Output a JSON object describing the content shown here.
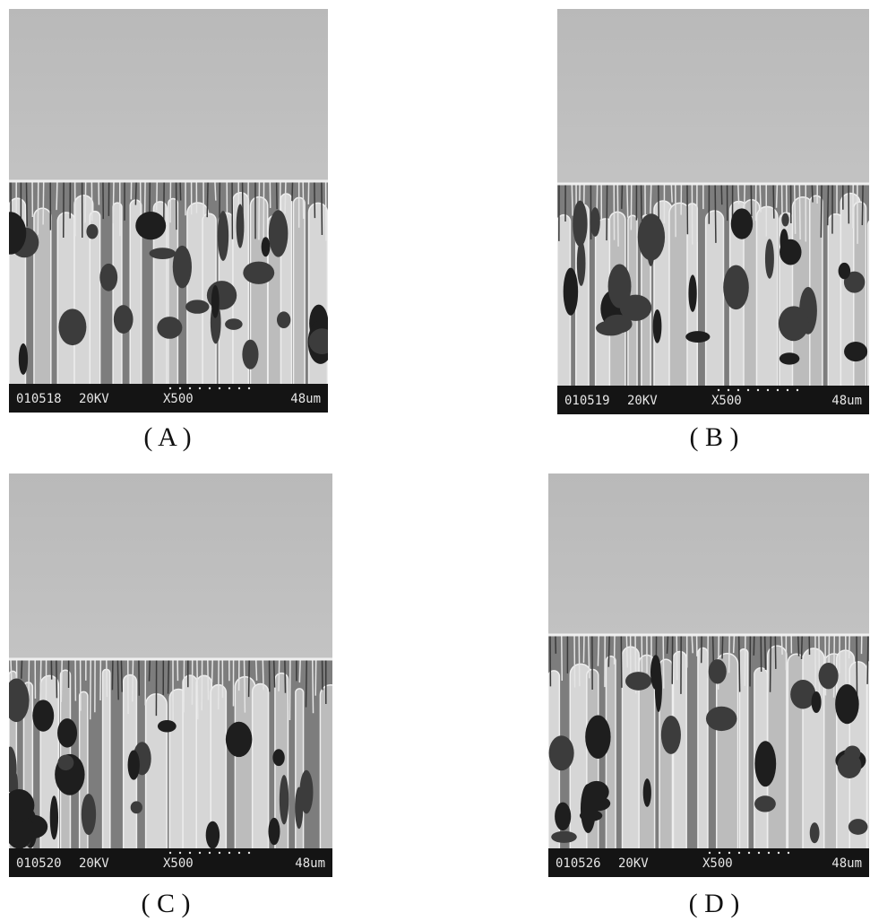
{
  "panels": [
    {
      "code": "010518",
      "voltage": "20KV",
      "magnification": "X500",
      "scale": "48um",
      "label": "( A )"
    },
    {
      "code": "010519",
      "voltage": "20KV",
      "magnification": "X500",
      "scale": "48um",
      "label": "( B )"
    },
    {
      "code": "010520",
      "voltage": "20KV",
      "magnification": "X500",
      "scale": "48um",
      "label": "( C )"
    },
    {
      "code": "010526",
      "voltage": "20KV",
      "magnification": "X500",
      "scale": "48um",
      "label": "( D )"
    }
  ]
}
